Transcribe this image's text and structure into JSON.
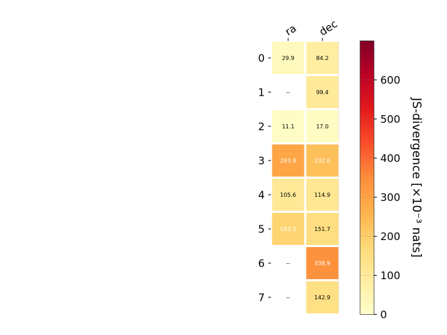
{
  "chart_data": {
    "type": "heatmap",
    "title": "",
    "columns": [
      "ra",
      "dec"
    ],
    "rows": [
      "0",
      "1",
      "2",
      "3",
      "4",
      "5",
      "6",
      "7"
    ],
    "values": [
      [
        29.9,
        84.2
      ],
      [
        null,
        99.4
      ],
      [
        11.1,
        17.0
      ],
      [
        293.8,
        232.0
      ],
      [
        105.6,
        114.9
      ],
      [
        183.3,
        151.7
      ],
      [
        null,
        338.9
      ],
      [
        null,
        142.9
      ]
    ],
    "cell_labels": [
      [
        "29.9",
        "84.2"
      ],
      [
        "--",
        "99.4"
      ],
      [
        "11.1",
        "17.0"
      ],
      [
        "293.8",
        "232.0"
      ],
      [
        "105.6",
        "114.9"
      ],
      [
        "183.3",
        "151.7"
      ],
      [
        "--",
        "338.9"
      ],
      [
        "--",
        "142.9"
      ]
    ],
    "colorbar": {
      "label": "JS-divergence [×10⁻³ nats]",
      "range": [
        0,
        700
      ],
      "ticks": [
        "0",
        "100",
        "200",
        "300",
        "400",
        "500",
        "600"
      ],
      "colormap": "YlOrRd",
      "colormap_stops": [
        "#ffffcc",
        "#ffeda0",
        "#fed976",
        "#feb24c",
        "#fd8d3c",
        "#fc4e2a",
        "#e31a1c",
        "#bd0026",
        "#800026"
      ]
    }
  }
}
